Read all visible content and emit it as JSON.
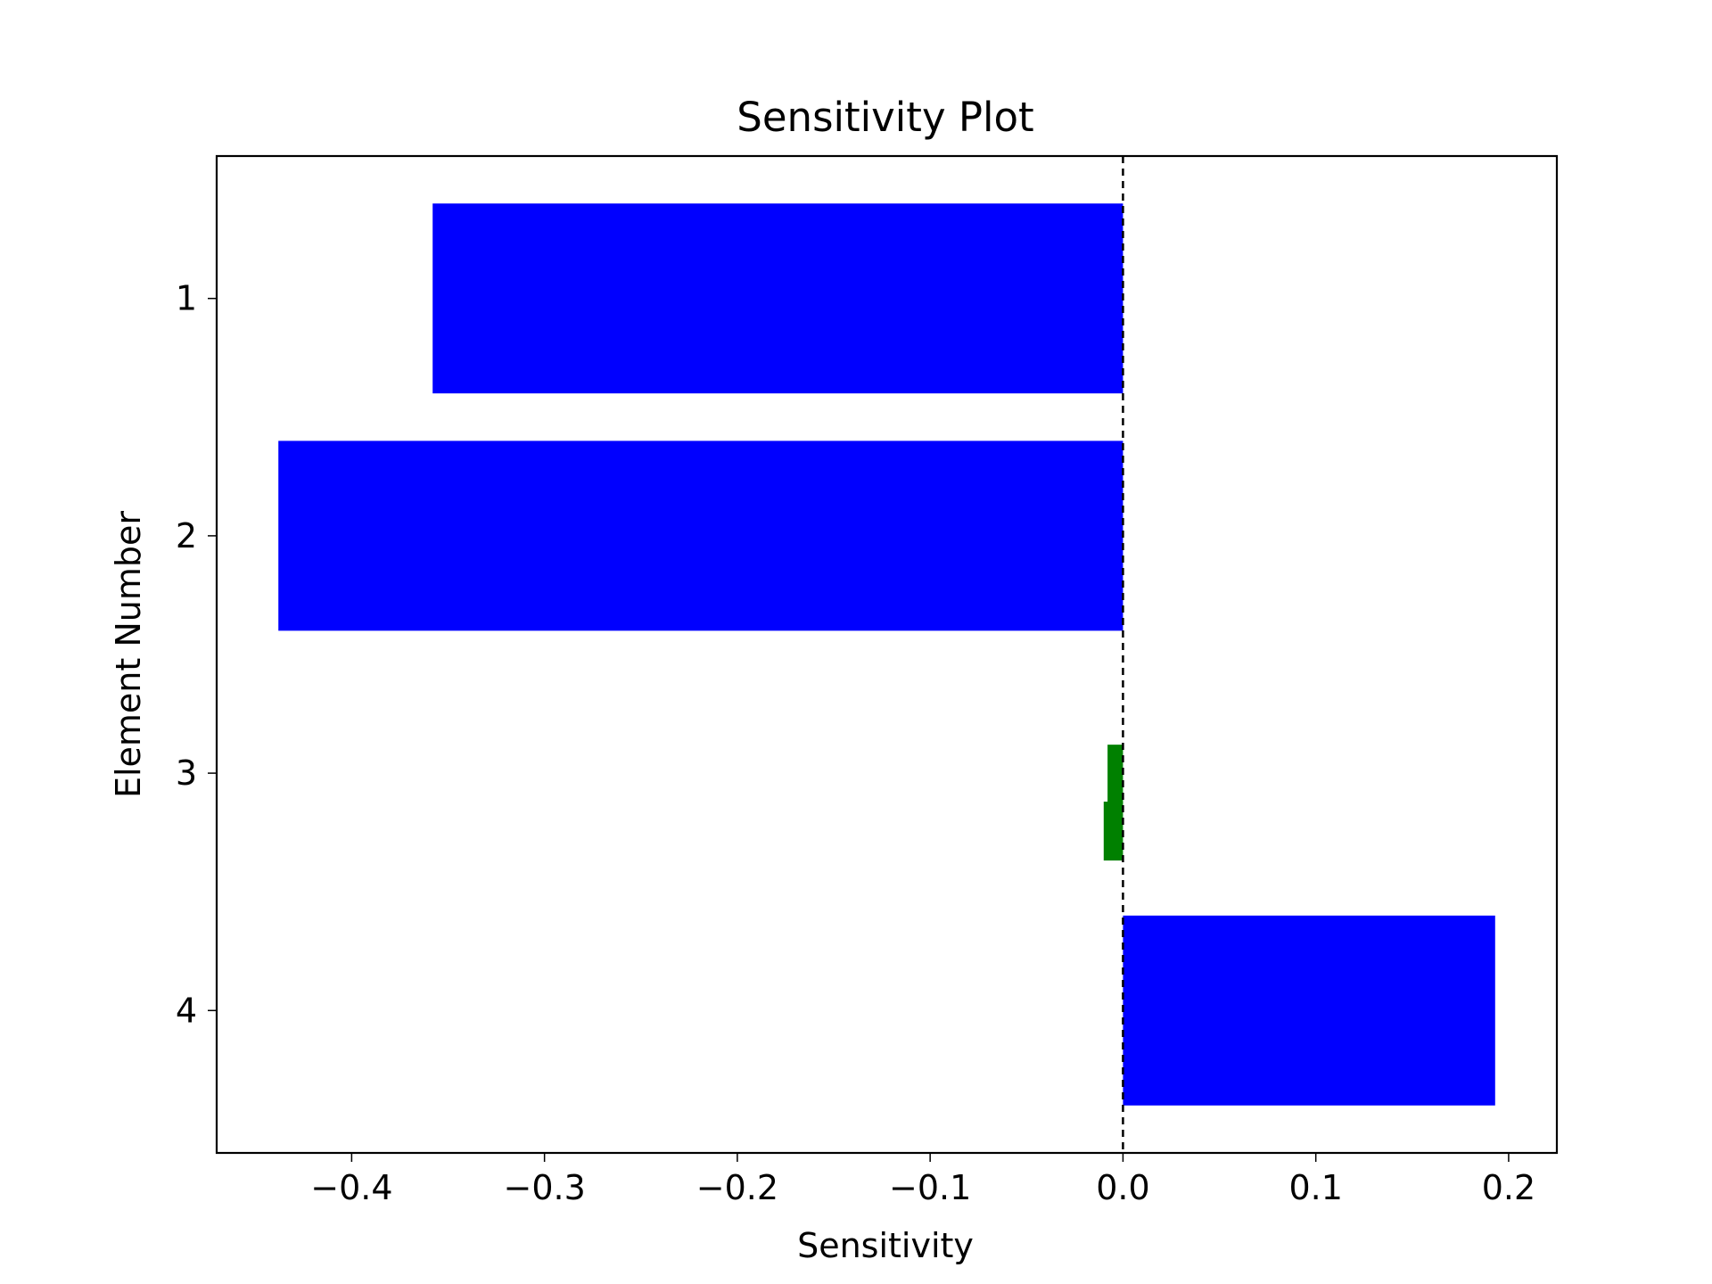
{
  "chart_data": {
    "type": "bar",
    "orientation": "horizontal",
    "title": "Sensitivity Plot",
    "xlabel": "Sensitivity",
    "ylabel": "Element Number",
    "xlim": [
      -0.47,
      0.225
    ],
    "x_ticks": [
      -0.4,
      -0.3,
      -0.2,
      -0.1,
      0.0,
      0.1,
      0.2
    ],
    "x_tick_labels": [
      "−0.4",
      "−0.3",
      "−0.2",
      "−0.1",
      "0.0",
      "0.1",
      "0.2"
    ],
    "categories": [
      "1",
      "2",
      "3",
      "4"
    ],
    "values": [
      -0.358,
      -0.438,
      0.0,
      0.193
    ],
    "bar_color": "#0000ff",
    "small_bars": [
      {
        "category": "3",
        "value": -0.008,
        "color": "#008000"
      },
      {
        "category": "3",
        "value": -0.01,
        "color": "#008000"
      }
    ],
    "reference_line": {
      "x": 0.0,
      "style": "dashed",
      "color": "#000000"
    },
    "grid": false,
    "legend": "none"
  }
}
